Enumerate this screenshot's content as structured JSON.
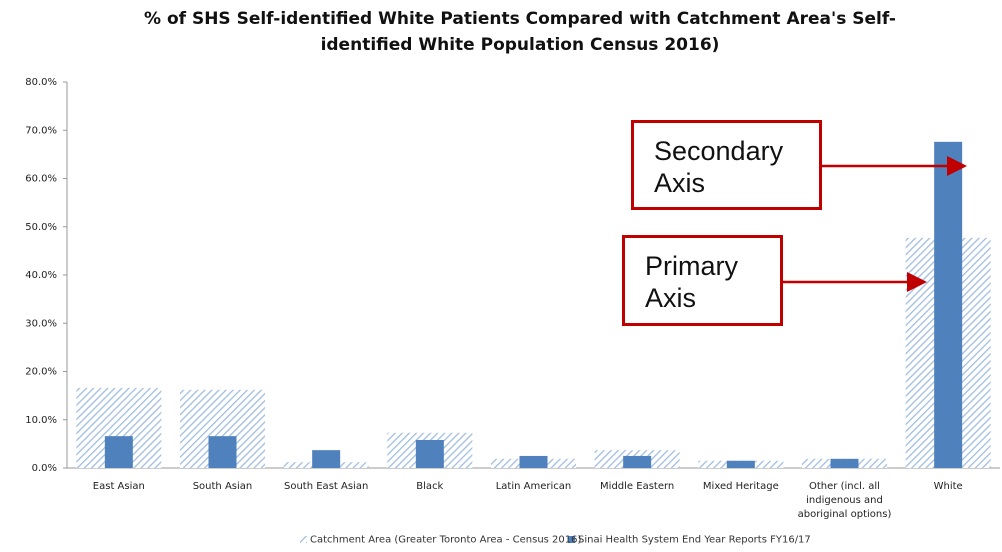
{
  "chart_data": {
    "type": "bar",
    "title": "% of SHS Self-identified White Patients Compared with Catchment Area's Self-identified White Population Census 2016)",
    "categories": [
      "East Asian",
      "South Asian",
      "South East Asian",
      "Black",
      "Latin American",
      "Middle Eastern",
      "Mixed Heritage",
      "Other (incl. all indigenous and aboriginal options)",
      "White"
    ],
    "series": [
      {
        "name": "Catchment Area (Greater Toronto Area - Census 2016)",
        "color": "#9dbbe0",
        "hatch": true,
        "values": [
          16.6,
          16.2,
          1.2,
          7.3,
          1.9,
          3.7,
          1.5,
          1.9,
          47.7
        ]
      },
      {
        "name": "Sinai Health System  End Year Reports FY16/17",
        "color": "#4f81bd",
        "hatch": false,
        "values": [
          6.6,
          6.6,
          3.7,
          5.8,
          2.5,
          2.5,
          1.5,
          1.9,
          67.6
        ]
      }
    ],
    "ylim": [
      0,
      80
    ],
    "yticks": [
      {
        "value": 0,
        "label": "0.0%"
      },
      {
        "value": 10,
        "label": "10.0%"
      },
      {
        "value": 20,
        "label": "20.0%"
      },
      {
        "value": 30,
        "label": "30.0%"
      },
      {
        "value": 40,
        "label": "40.0%"
      },
      {
        "value": 50,
        "label": "50.0%"
      },
      {
        "value": 60,
        "label": "60.0%"
      },
      {
        "value": 70,
        "label": "70.0%"
      },
      {
        "value": 80,
        "label": "80.0%"
      }
    ],
    "annotations": [
      "Secondary Axis",
      "Primary Axis"
    ]
  }
}
